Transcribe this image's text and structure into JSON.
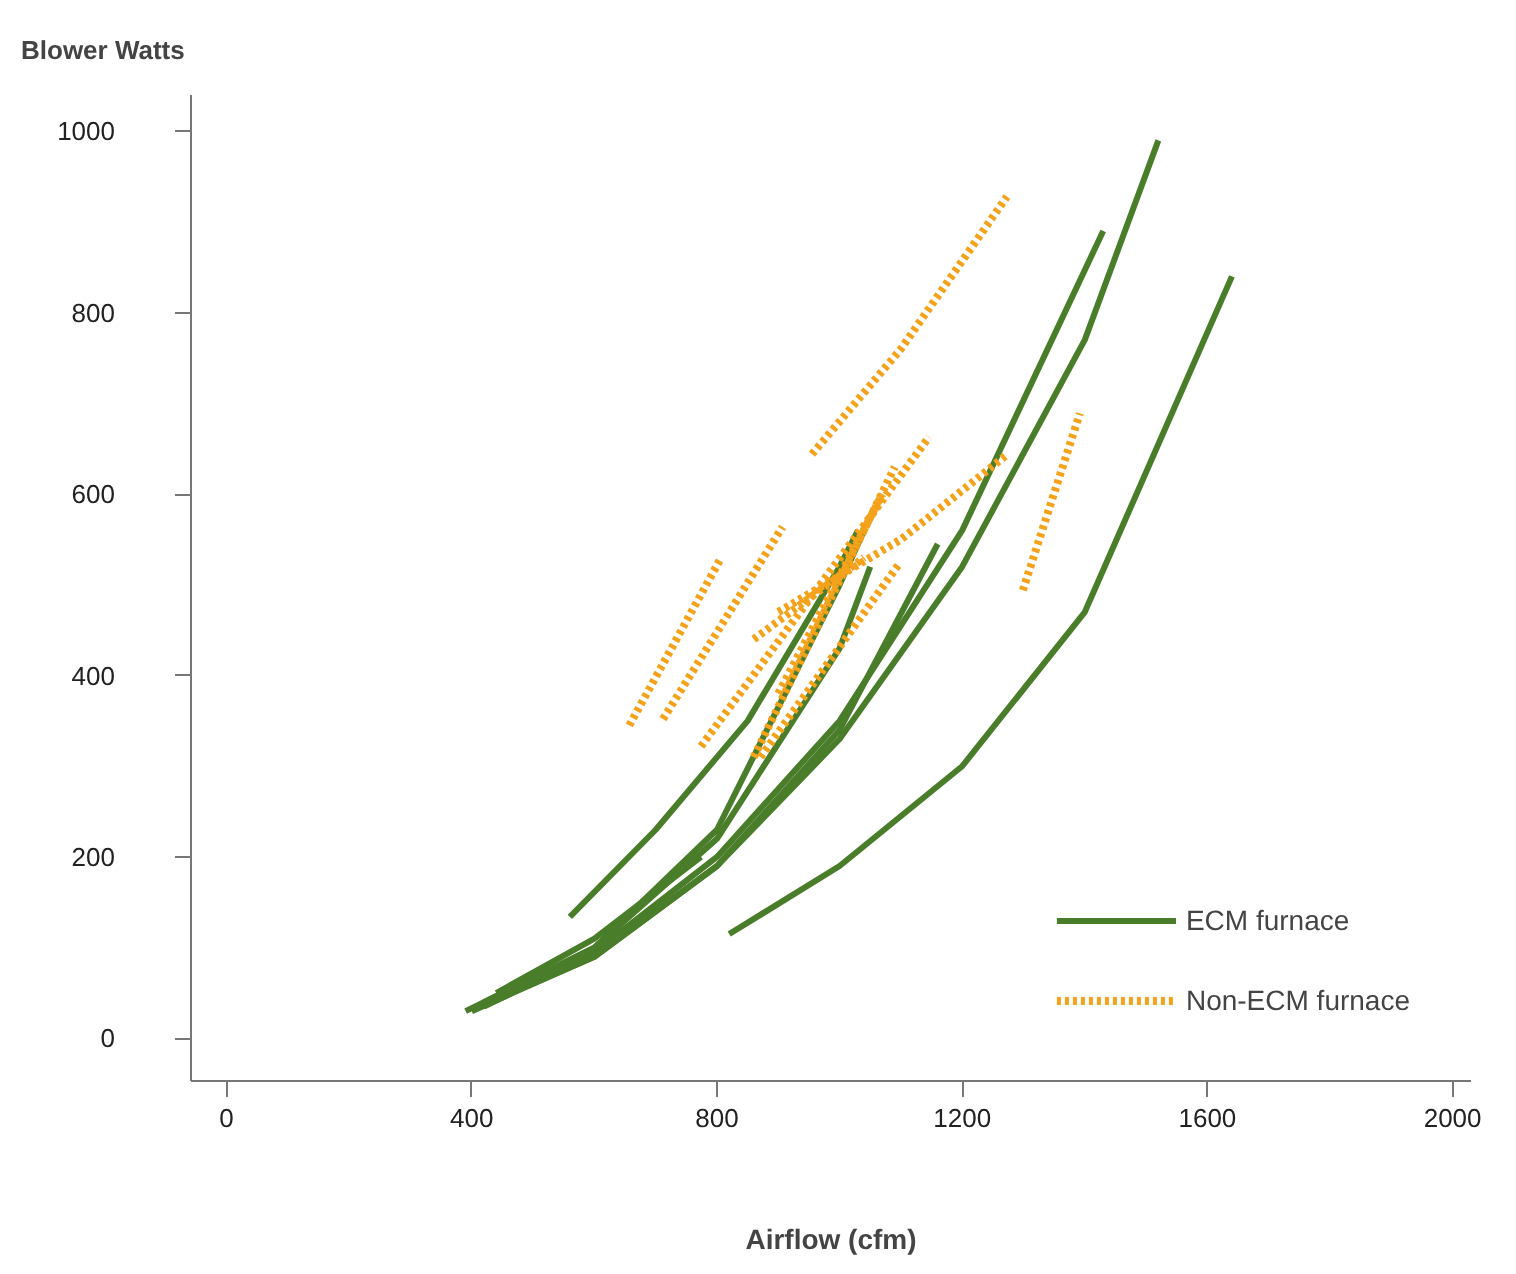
{
  "chart_data": {
    "type": "line",
    "ylabel": "Blower Watts",
    "xlabel": "Airflow (cfm)",
    "xlim": [
      -58,
      2030
    ],
    "ylim": [
      -47,
      1040
    ],
    "xticks": [
      0,
      400,
      800,
      1200,
      1600,
      2000
    ],
    "yticks": [
      0,
      200,
      400,
      600,
      800,
      1000
    ],
    "grid": false,
    "legend": "bottom right",
    "marker": "none",
    "series": [
      {
        "name": "ECM furnace",
        "color": "#4a7d2a",
        "line_style": "solid",
        "x": [
          400,
          600,
          800,
          1000,
          1200,
          1400,
          1520
        ],
        "values": [
          30,
          90,
          190,
          330,
          520,
          770,
          990
        ]
      },
      {
        "color": "#4a7d2a",
        "line_style": "solid",
        "x": [
          420,
          600,
          800,
          1000,
          1200,
          1430
        ],
        "values": [
          35,
          95,
          200,
          350,
          560,
          890
        ]
      },
      {
        "color": "#4a7d2a",
        "line_style": "solid",
        "x": [
          820,
          1000,
          1200,
          1400,
          1640
        ],
        "values": [
          115,
          190,
          300,
          470,
          840
        ]
      },
      {
        "color": "#4a7d2a",
        "line_style": "solid",
        "x": [
          430,
          600,
          800,
          1000,
          1160
        ],
        "values": [
          40,
          90,
          190,
          340,
          545
        ]
      },
      {
        "color": "#4a7d2a",
        "line_style": "solid",
        "x": [
          390,
          600,
          800,
          1000,
          1040
        ],
        "values": [
          30,
          100,
          230,
          500,
          560
        ]
      },
      {
        "color": "#4a7d2a",
        "line_style": "solid",
        "x": [
          560,
          700,
          850,
          1000,
          1030
        ],
        "values": [
          134,
          230,
          350,
          520,
          560
        ]
      },
      {
        "color": "#4a7d2a",
        "line_style": "solid",
        "x": [
          440,
          600,
          774
        ],
        "values": [
          50,
          110,
          200
        ]
      },
      {
        "color": "#4a7d2a",
        "line_style": "solid",
        "x": [
          420,
          600,
          800,
          1000,
          1050
        ],
        "values": [
          40,
          100,
          220,
          430,
          520
        ]
      },
      {
        "name": "Non-ECM furnace",
        "color": "#f5a21b",
        "line_style": "dotted",
        "x": [
          955,
          1100,
          1273
        ],
        "values": [
          644,
          760,
          928
        ]
      },
      {
        "color": "#f5a21b",
        "line_style": "dotted",
        "x": [
          1299,
          1392
        ],
        "values": [
          494,
          689
        ]
      },
      {
        "color": "#f5a21b",
        "line_style": "dotted",
        "x": [
          900,
          1100,
          1270
        ],
        "values": [
          470,
          550,
          642
        ]
      },
      {
        "color": "#f5a21b",
        "line_style": "dotted",
        "x": [
          657,
          806
        ],
        "values": [
          345,
          529
        ]
      },
      {
        "color": "#f5a21b",
        "line_style": "dotted",
        "x": [
          712,
          907
        ],
        "values": [
          352,
          564
        ]
      },
      {
        "color": "#f5a21b",
        "line_style": "dotted",
        "x": [
          774,
          1146
        ],
        "values": [
          322,
          663
        ]
      },
      {
        "color": "#f5a21b",
        "line_style": "dotted",
        "x": [
          860,
          1090
        ],
        "values": [
          310,
          630
        ]
      },
      {
        "color": "#f5a21b",
        "line_style": "dotted",
        "x": [
          900,
          1070
        ],
        "values": [
          380,
          600
        ]
      },
      {
        "color": "#f5a21b",
        "line_style": "dotted",
        "x": [
          860,
          1040
        ],
        "values": [
          440,
          530
        ]
      },
      {
        "color": "#f5a21b",
        "line_style": "dotted",
        "x": [
          871,
          1098
        ],
        "values": [
          310,
          524
        ]
      }
    ]
  }
}
